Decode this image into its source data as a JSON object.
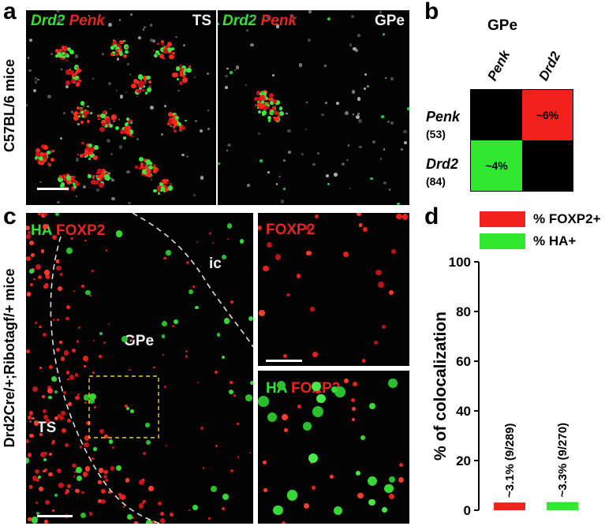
{
  "panel_a": {
    "letter": "a",
    "side_label": "C57BL/6 mice",
    "left": {
      "g": "Drd2",
      "r": "Penk",
      "region": "TS"
    },
    "right": {
      "g": "Drd2",
      "r": "Penk",
      "region": "GPe"
    }
  },
  "panel_b": {
    "letter": "b",
    "title": "GPe",
    "cols": [
      "Penk",
      "Drd2"
    ],
    "rows": [
      {
        "name": "Penk",
        "n": "(53)"
      },
      {
        "name": "Drd2",
        "n": "(84)"
      }
    ],
    "cells": {
      "penk_drd2": "~6%",
      "drd2_penk": "~4%"
    },
    "colors": {
      "red": "#f2211b",
      "green": "#2fe82f",
      "empty": "#000000"
    }
  },
  "panel_c": {
    "letter": "c",
    "side_label": "Drd2Cre/+;Ribotagf/+ mice",
    "main": {
      "g": "HA",
      "r": "FOXP2",
      "ic": "ic",
      "gpe": "GPe",
      "ts": "TS"
    },
    "inset_top": {
      "r": "FOXP2"
    },
    "inset_bottom": {
      "g": "HA",
      "r": "FOXP2"
    }
  },
  "panel_d": {
    "letter": "d",
    "legend": [
      {
        "label": "% FOXP2+",
        "color": "#f2211b"
      },
      {
        "label": "% HA+",
        "color": "#2fe82f"
      }
    ]
  },
  "chart_data": {
    "type": "bar",
    "ylabel": "% of colocalization",
    "ylim": [
      0,
      100
    ],
    "yticks": [
      0,
      20,
      40,
      60,
      80,
      100
    ],
    "series": [
      {
        "name": "% FOXP2+",
        "value": 3.1,
        "label": "~3.1% (9/289)",
        "color": "#f2211b"
      },
      {
        "name": "% HA+",
        "value": 3.3,
        "label": "~3.3% (9/270)",
        "color": "#2fe82f"
      }
    ]
  }
}
